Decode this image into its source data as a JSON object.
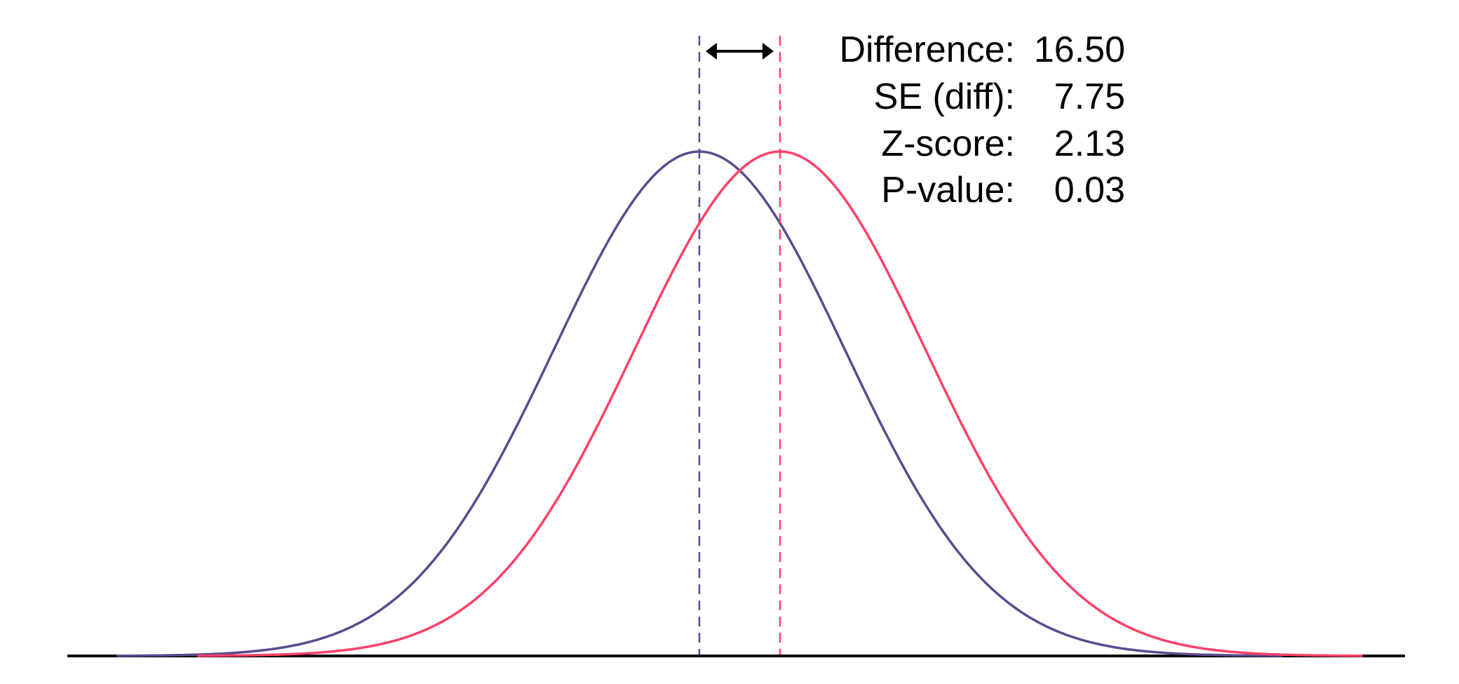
{
  "chart_data": {
    "type": "line",
    "title": "",
    "xlabel": "",
    "ylabel": "",
    "grid": false,
    "series": [
      {
        "distribution": "normal",
        "mean": 0,
        "sd": 29.8,
        "color": "#5C4A8E",
        "mean_line": "dashed"
      },
      {
        "distribution": "normal",
        "mean": 16.5,
        "sd": 29.8,
        "color": "#FF4069",
        "mean_line": "dashed"
      }
    ],
    "annotations": {
      "arrow": "double-headed arrow between means",
      "stats": [
        {
          "label": "Difference:",
          "value": "16.50"
        },
        {
          "label": "SE (diff):",
          "value": "7.75"
        },
        {
          "label": "Z-score:",
          "value": "2.13"
        },
        {
          "label": "P-value:",
          "value": "0.03"
        }
      ]
    },
    "axis_color": "#000000"
  }
}
